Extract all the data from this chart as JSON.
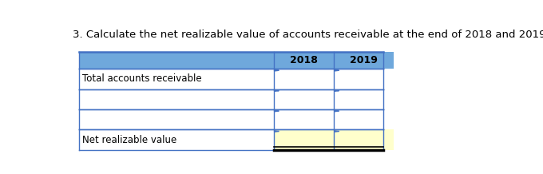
{
  "title": "3. Calculate the net realizable value of accounts receivable at the end of 2018 and 2019.",
  "title_fontsize": 9.5,
  "white_bg": "#ffffff",
  "yellow_bg": "#ffffcc",
  "header_bg": "#6fa8dc",
  "border_color": "#4472c4",
  "black_color": "#000000",
  "text_color": "#000000",
  "rows": [
    {
      "label": "",
      "is_header": true
    },
    {
      "label": "Total accounts receivable",
      "is_header": false
    },
    {
      "label": "",
      "is_header": false
    },
    {
      "label": "",
      "is_header": false
    },
    {
      "label": "Net realizable value",
      "is_header": false
    }
  ],
  "col_labels": [
    "",
    "2018",
    "2019"
  ],
  "fig_width": 6.8,
  "fig_height": 2.18,
  "dpi": 100
}
